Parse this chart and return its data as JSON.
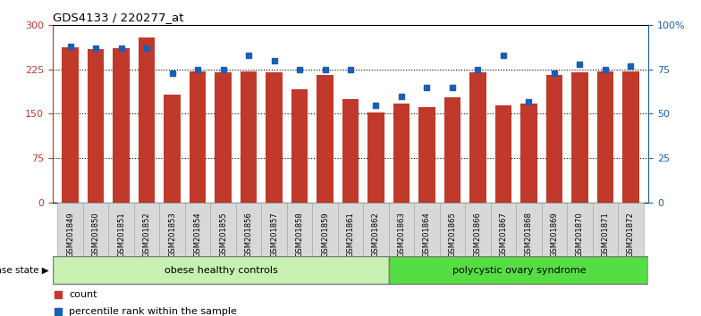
{
  "title": "GDS4133 / 220277_at",
  "samples": [
    "GSM201849",
    "GSM201850",
    "GSM201851",
    "GSM201852",
    "GSM201853",
    "GSM201854",
    "GSM201855",
    "GSM201856",
    "GSM201857",
    "GSM201858",
    "GSM201859",
    "GSM201861",
    "GSM201862",
    "GSM201863",
    "GSM201864",
    "GSM201865",
    "GSM201866",
    "GSM201867",
    "GSM201868",
    "GSM201869",
    "GSM201870",
    "GSM201871",
    "GSM201872"
  ],
  "counts": [
    262,
    260,
    261,
    280,
    183,
    222,
    220,
    222,
    220,
    192,
    215,
    175,
    152,
    168,
    162,
    178,
    220,
    165,
    168,
    215,
    220,
    222,
    222
  ],
  "percentiles": [
    88,
    87,
    87,
    87,
    73,
    75,
    75,
    83,
    80,
    75,
    75,
    75,
    55,
    60,
    65,
    65,
    75,
    83,
    57,
    73,
    78,
    75,
    77
  ],
  "bar_color": "#c0392b",
  "percentile_color": "#1a5fb4",
  "group1_label": "obese healthy controls",
  "group2_label": "polycystic ovary syndrome",
  "group1_count": 13,
  "group2_count": 10,
  "ylim_left": [
    0,
    300
  ],
  "ylim_right": [
    0,
    100
  ],
  "yticks_left": [
    0,
    75,
    150,
    225,
    300
  ],
  "ytick_labels_left": [
    "0",
    "75",
    "150",
    "225",
    "300"
  ],
  "yticks_right": [
    0,
    25,
    50,
    75,
    100
  ],
  "ytick_labels_right": [
    "0",
    "25",
    "50",
    "75",
    "100%"
  ],
  "group1_color": "#c8f0b0",
  "group2_color": "#55dd44",
  "label_count": "count",
  "label_percentile": "percentile rank within the sample",
  "disease_state_label": "disease state"
}
